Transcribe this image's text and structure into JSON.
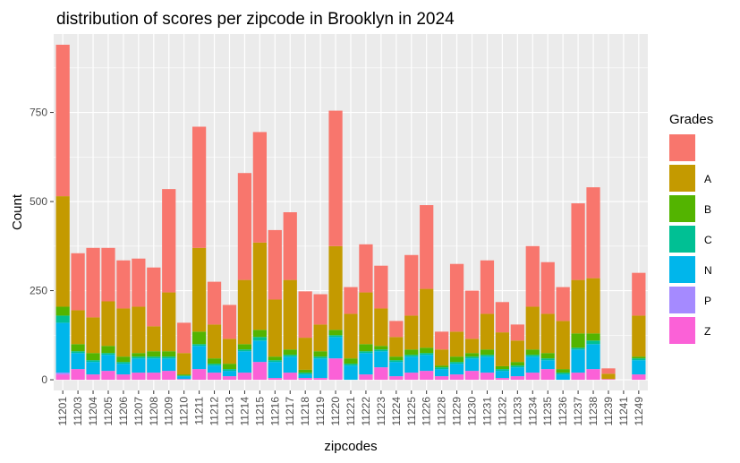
{
  "chart_data": {
    "type": "bar",
    "stacked": true,
    "title": "distribution of scores per zipcode in Brooklyn in 2024",
    "xlabel": "zipcodes",
    "ylabel": "Count",
    "ylim": [
      0,
      970
    ],
    "yticks": [
      0,
      250,
      500,
      750
    ],
    "legend_title": "Grades",
    "legend_position": "right",
    "grid": true,
    "categories": [
      "11201",
      "11203",
      "11204",
      "11205",
      "11206",
      "11207",
      "11208",
      "11209",
      "11210",
      "11211",
      "11212",
      "11213",
      "11214",
      "11215",
      "11216",
      "11217",
      "11218",
      "11219",
      "11220",
      "11221",
      "11222",
      "11223",
      "11224",
      "11225",
      "11226",
      "11228",
      "11229",
      "11230",
      "11231",
      "11232",
      "11233",
      "11234",
      "11235",
      "11236",
      "11237",
      "11238",
      "11239",
      "11241",
      "11249"
    ],
    "series": [
      {
        "name": "",
        "color": "#F8766D",
        "values": [
          425,
          160,
          195,
          150,
          135,
          135,
          165,
          290,
          85,
          340,
          120,
          95,
          300,
          310,
          195,
          190,
          130,
          85,
          380,
          75,
          135,
          120,
          45,
          170,
          235,
          50,
          190,
          135,
          150,
          85,
          45,
          170,
          145,
          95,
          215,
          255,
          15,
          0,
          120
        ]
      },
      {
        "name": "A",
        "color": "#C49A00",
        "values": [
          310,
          95,
          100,
          125,
          135,
          130,
          70,
          165,
          60,
          235,
          95,
          70,
          180,
          245,
          160,
          195,
          90,
          75,
          235,
          125,
          145,
          105,
          55,
          95,
          165,
          45,
          70,
          40,
          100,
          95,
          60,
          120,
          110,
          135,
          150,
          155,
          15,
          0,
          115
        ]
      },
      {
        "name": "B",
        "color": "#53B400",
        "values": [
          25,
          20,
          20,
          20,
          15,
          10,
          15,
          15,
          3,
          35,
          15,
          15,
          15,
          20,
          10,
          15,
          8,
          15,
          15,
          15,
          20,
          10,
          10,
          15,
          15,
          5,
          15,
          10,
          15,
          8,
          10,
          15,
          15,
          10,
          40,
          20,
          0,
          0,
          5
        ]
      },
      {
        "name": "C",
        "color": "#00C094",
        "values": [
          20,
          5,
          5,
          5,
          5,
          5,
          5,
          5,
          2,
          5,
          5,
          5,
          5,
          10,
          5,
          5,
          5,
          5,
          5,
          5,
          5,
          5,
          5,
          5,
          5,
          5,
          5,
          5,
          5,
          5,
          5,
          5,
          5,
          5,
          5,
          10,
          0,
          0,
          5
        ]
      },
      {
        "name": "N",
        "color": "#00B6EB",
        "values": [
          140,
          45,
          35,
          45,
          30,
          40,
          40,
          35,
          8,
          65,
          20,
          15,
          60,
          60,
          45,
          45,
          10,
          55,
          60,
          40,
          60,
          45,
          40,
          45,
          45,
          20,
          30,
          35,
          45,
          20,
          25,
          45,
          25,
          15,
          65,
          70,
          0,
          0,
          40
        ]
      },
      {
        "name": "P",
        "color": "#A58AFF",
        "values": [
          5,
          0,
          0,
          0,
          0,
          0,
          0,
          0,
          0,
          0,
          0,
          0,
          0,
          0,
          0,
          0,
          0,
          0,
          0,
          0,
          0,
          0,
          0,
          0,
          0,
          0,
          0,
          0,
          0,
          0,
          0,
          0,
          0,
          0,
          0,
          0,
          0,
          0,
          0
        ]
      },
      {
        "name": "Z",
        "color": "#FB61D7",
        "values": [
          15,
          30,
          15,
          25,
          15,
          20,
          20,
          25,
          2,
          30,
          20,
          10,
          20,
          50,
          5,
          20,
          5,
          5,
          60,
          0,
          15,
          35,
          10,
          20,
          25,
          10,
          15,
          25,
          20,
          5,
          10,
          20,
          30,
          0,
          20,
          30,
          2,
          0,
          15
        ]
      }
    ]
  }
}
